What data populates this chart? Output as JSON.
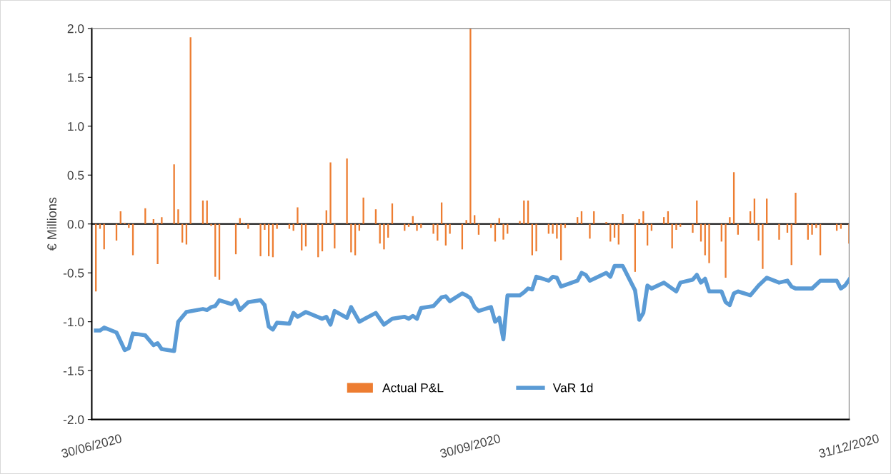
{
  "chart_data": {
    "type": "bar",
    "ylabel": "€ Millions",
    "x": [
      "2020-07-01",
      "2020-07-02",
      "2020-07-03",
      "2020-07-06",
      "2020-07-07",
      "2020-07-08",
      "2020-07-09",
      "2020-07-10",
      "2020-07-13",
      "2020-07-15",
      "2020-07-16",
      "2020-07-17",
      "2020-07-20",
      "2020-07-21",
      "2020-07-22",
      "2020-07-23",
      "2020-07-24",
      "2020-07-27",
      "2020-07-28",
      "2020-07-29",
      "2020-07-30",
      "2020-07-31",
      "2020-08-04",
      "2020-08-05",
      "2020-08-06",
      "2020-08-07",
      "2020-08-10",
      "2020-08-11",
      "2020-08-12",
      "2020-08-13",
      "2020-08-14",
      "2020-08-17",
      "2020-08-18",
      "2020-08-19",
      "2020-08-20",
      "2020-08-21",
      "2020-08-24",
      "2020-08-25",
      "2020-08-26",
      "2020-08-27",
      "2020-08-28",
      "2020-08-31",
      "2020-09-01",
      "2020-09-02",
      "2020-09-03",
      "2020-09-04",
      "2020-09-07",
      "2020-09-08",
      "2020-09-09",
      "2020-09-10",
      "2020-09-11",
      "2020-09-14",
      "2020-09-15",
      "2020-09-16",
      "2020-09-17",
      "2020-09-18",
      "2020-09-21",
      "2020-09-22",
      "2020-09-23",
      "2020-09-24",
      "2020-09-25",
      "2020-09-28",
      "2020-09-29",
      "2020-09-30",
      "2020-10-01",
      "2020-10-02",
      "2020-10-05",
      "2020-10-06",
      "2020-10-07",
      "2020-10-08",
      "2020-10-09",
      "2020-10-12",
      "2020-10-13",
      "2020-10-14",
      "2020-10-15",
      "2020-10-16",
      "2020-10-19",
      "2020-10-20",
      "2020-10-21",
      "2020-10-22",
      "2020-10-23",
      "2020-10-26",
      "2020-10-27",
      "2020-10-29",
      "2020-10-30",
      "2020-11-02",
      "2020-11-03",
      "2020-11-04",
      "2020-11-05",
      "2020-11-06",
      "2020-11-09",
      "2020-11-10",
      "2020-11-11",
      "2020-11-12",
      "2020-11-13",
      "2020-11-16",
      "2020-11-17",
      "2020-11-18",
      "2020-11-19",
      "2020-11-20",
      "2020-11-23",
      "2020-11-24",
      "2020-11-25",
      "2020-11-26",
      "2020-11-27",
      "2020-11-30",
      "2020-12-01",
      "2020-12-02",
      "2020-12-03",
      "2020-12-04",
      "2020-12-07",
      "2020-12-08",
      "2020-12-09",
      "2020-12-10",
      "2020-12-11",
      "2020-12-14",
      "2020-12-16",
      "2020-12-17",
      "2020-12-18",
      "2020-12-21",
      "2020-12-22",
      "2020-12-23",
      "2020-12-24",
      "2020-12-28",
      "2020-12-29",
      "2020-12-31"
    ],
    "series": [
      {
        "name": "Actual P&L",
        "color": "#ed7d31",
        "values": [
          -0.69,
          -0.05,
          -0.26,
          -0.17,
          0.13,
          0.01,
          -0.04,
          -0.32,
          0.16,
          0.05,
          -0.41,
          0.07,
          0.61,
          0.15,
          -0.19,
          -0.21,
          1.91,
          0.24,
          0.24,
          -0.02,
          -0.54,
          -0.57,
          -0.31,
          0.06,
          0.01,
          -0.05,
          -0.33,
          -0.06,
          -0.33,
          -0.34,
          -0.05,
          -0.05,
          -0.07,
          0.17,
          -0.27,
          -0.23,
          -0.34,
          -0.28,
          0.14,
          0.63,
          -0.25,
          0.67,
          -0.29,
          -0.32,
          -0.07,
          0.27,
          0.15,
          -0.2,
          -0.26,
          -0.14,
          0.21,
          -0.07,
          -0.03,
          0.08,
          -0.07,
          -0.04,
          -0.1,
          -0.17,
          0.22,
          -0.22,
          -0.1,
          -0.26,
          0.04,
          2.0,
          0.09,
          -0.11,
          -0.04,
          -0.18,
          0.06,
          -0.16,
          -0.1,
          0.03,
          0.24,
          0.24,
          -0.32,
          -0.28,
          -0.1,
          -0.1,
          -0.15,
          -0.37,
          -0.04,
          0.07,
          0.13,
          -0.15,
          0.13,
          0.02,
          -0.18,
          -0.14,
          -0.21,
          0.1,
          -0.49,
          0.05,
          0.13,
          -0.22,
          -0.07,
          0.07,
          0.13,
          -0.25,
          -0.06,
          -0.03,
          -0.09,
          0.24,
          -0.18,
          -0.32,
          -0.4,
          -0.18,
          -0.55,
          0.07,
          0.53,
          -0.11,
          0.13,
          0.26,
          -0.17,
          -0.46,
          0.26,
          -0.16,
          -0.09,
          -0.42,
          0.32,
          -0.16,
          -0.11,
          -0.04,
          -0.32,
          -0.07,
          -0.05,
          -0.2
        ]
      },
      {
        "name": "VaR 1d",
        "type": "line",
        "color": "#5b9bd5",
        "x": [
          "2020-07-01",
          "2020-07-02",
          "2020-07-03",
          "2020-07-06",
          "2020-07-08",
          "2020-07-09",
          "2020-07-10",
          "2020-07-13",
          "2020-07-15",
          "2020-07-16",
          "2020-07-17",
          "2020-07-20",
          "2020-07-21",
          "2020-07-23",
          "2020-07-27",
          "2020-07-28",
          "2020-07-29",
          "2020-07-30",
          "2020-07-31",
          "2020-08-03",
          "2020-08-04",
          "2020-08-05",
          "2020-08-06",
          "2020-08-07",
          "2020-08-10",
          "2020-08-11",
          "2020-08-12",
          "2020-08-13",
          "2020-08-14",
          "2020-08-17",
          "2020-08-18",
          "2020-08-19",
          "2020-08-21",
          "2020-08-25",
          "2020-08-26",
          "2020-08-27",
          "2020-08-28",
          "2020-08-31",
          "2020-09-01",
          "2020-09-03",
          "2020-09-07",
          "2020-09-09",
          "2020-09-11",
          "2020-09-14",
          "2020-09-15",
          "2020-09-16",
          "2020-09-17",
          "2020-09-18",
          "2020-09-21",
          "2020-09-23",
          "2020-09-24",
          "2020-09-25",
          "2020-09-28",
          "2020-09-29",
          "2020-09-30",
          "2020-10-01",
          "2020-10-02",
          "2020-10-05",
          "2020-10-06",
          "2020-10-07",
          "2020-10-08",
          "2020-10-09",
          "2020-10-12",
          "2020-10-13",
          "2020-10-14",
          "2020-10-15",
          "2020-10-16",
          "2020-10-19",
          "2020-10-20",
          "2020-10-21",
          "2020-10-22",
          "2020-10-26",
          "2020-10-27",
          "2020-10-28",
          "2020-10-29",
          "2020-10-30",
          "2020-11-02",
          "2020-11-03",
          "2020-11-04",
          "2020-11-06",
          "2020-11-09",
          "2020-11-10",
          "2020-11-11",
          "2020-11-12",
          "2020-11-13",
          "2020-11-16",
          "2020-11-19",
          "2020-11-20",
          "2020-11-23",
          "2020-11-24",
          "2020-11-25",
          "2020-11-26",
          "2020-11-27",
          "2020-11-30",
          "2020-12-01",
          "2020-12-02",
          "2020-12-03",
          "2020-12-04",
          "2020-12-07",
          "2020-12-09",
          "2020-12-11",
          "2020-12-14",
          "2020-12-16",
          "2020-12-17",
          "2020-12-18",
          "2020-12-22",
          "2020-12-24",
          "2020-12-28",
          "2020-12-29",
          "2020-12-30",
          "2020-12-31"
        ],
        "values": [
          -1.09,
          -1.09,
          -1.06,
          -1.11,
          -1.29,
          -1.27,
          -1.12,
          -1.14,
          -1.24,
          -1.22,
          -1.28,
          -1.3,
          -1.0,
          -0.9,
          -0.87,
          -0.88,
          -0.85,
          -0.84,
          -0.78,
          -0.82,
          -0.78,
          -0.88,
          -0.84,
          -0.8,
          -0.78,
          -0.83,
          -1.05,
          -1.08,
          -1.01,
          -1.02,
          -0.91,
          -0.95,
          -0.9,
          -0.97,
          -0.95,
          -1.03,
          -0.89,
          -0.96,
          -0.85,
          -1.0,
          -0.91,
          -1.03,
          -0.97,
          -0.95,
          -0.97,
          -0.94,
          -0.97,
          -0.86,
          -0.84,
          -0.75,
          -0.74,
          -0.79,
          -0.71,
          -0.73,
          -0.76,
          -0.85,
          -0.89,
          -0.85,
          -1.0,
          -0.96,
          -1.18,
          -0.73,
          -0.73,
          -0.7,
          -0.66,
          -0.67,
          -0.54,
          -0.58,
          -0.54,
          -0.55,
          -0.64,
          -0.58,
          -0.5,
          -0.52,
          -0.58,
          -0.56,
          -0.5,
          -0.54,
          -0.43,
          -0.43,
          -0.68,
          -0.98,
          -0.91,
          -0.63,
          -0.66,
          -0.6,
          -0.69,
          -0.6,
          -0.57,
          -0.52,
          -0.6,
          -0.56,
          -0.69,
          -0.69,
          -0.8,
          -0.83,
          -0.71,
          -0.69,
          -0.73,
          -0.63,
          -0.55,
          -0.6,
          -0.58,
          -0.64,
          -0.66,
          -0.66,
          -0.58,
          -0.58,
          -0.66,
          -0.63,
          -0.57
        ]
      }
    ],
    "xlim": [
      "2020-06-30",
      "2020-12-31"
    ],
    "xticks": [
      {
        "value": "2020-06-30",
        "label": "30/06/2020"
      },
      {
        "value": "2020-09-30",
        "label": "30/09/2020"
      },
      {
        "value": "2020-12-31",
        "label": "31/12/2020"
      }
    ],
    "ylim": [
      -2.0,
      2.0
    ],
    "yticks": [
      {
        "value": -2,
        "label": "-2.0"
      },
      {
        "value": -1.5,
        "label": "-1.5"
      },
      {
        "value": -1,
        "label": "-1.0"
      },
      {
        "value": -0.5,
        "label": "-0.5"
      },
      {
        "value": 0,
        "label": "0.0"
      },
      {
        "value": 0.5,
        "label": "0.5"
      },
      {
        "value": 1,
        "label": "1.0"
      },
      {
        "value": 1.5,
        "label": "1.5"
      },
      {
        "value": 2,
        "label": "2.0"
      }
    ],
    "legend": "bottom"
  }
}
